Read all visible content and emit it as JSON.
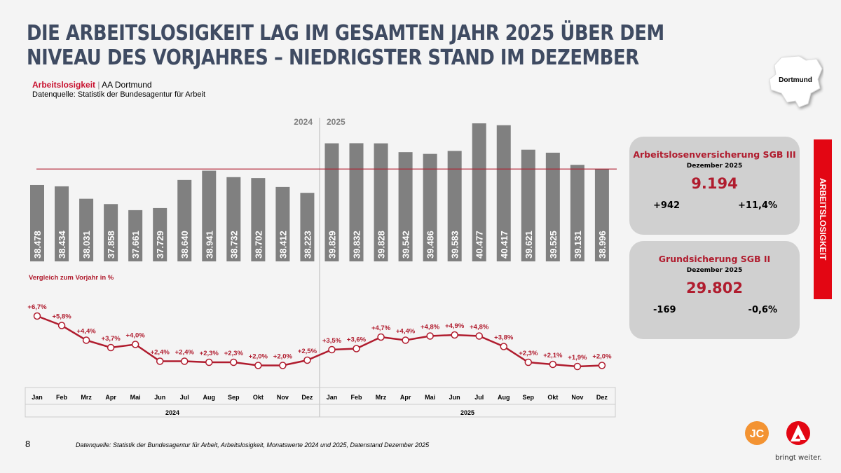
{
  "title": "DIE ARBEITSLOSIGKEIT LAG IM GESAMTEN JAHR 2025 ÜBER DEM NIVEAU DES VORJAHRES – NIEDRIGSTER STAND IM DEZEMBER",
  "subtitle_label": "Arbeitslosigkeit",
  "subtitle_region": "AA Dortmund",
  "source_line": "Datenquelle: Statistik der Bundesagentur für Arbeit",
  "map_label": "Dortmund",
  "side_band": "ARBEITSLOSIGKEIT",
  "cards": [
    {
      "heading": "Arbeitslosenversicherung SGB III",
      "date": "Dezember 2025",
      "value": "9.194",
      "abs": "+942",
      "pct": "+11,4%"
    },
    {
      "heading": "Grundsicherung SGB II",
      "date": "Dezember 2025",
      "value": "29.802",
      "abs": "-169",
      "pct": "-0,6%"
    }
  ],
  "page_number": "8",
  "footnote": "Datenquelle: Statistik der Bundesagentur für Arbeit, Arbeitslosigkeit, Monatswerte 2024 und 2025, Datenstand Dezember 2025",
  "logo_text": "JC",
  "slogan": "bringt weiter.",
  "colors": {
    "bar": "#808080",
    "accent": "#b01c2e",
    "title": "#3f4b62",
    "band": "#e30613"
  },
  "chart_data": [
    {
      "type": "bar",
      "years": [
        "2024",
        "2025"
      ],
      "categories": [
        "Jan",
        "Feb",
        "Mrz",
        "Apr",
        "Mai",
        "Jun",
        "Jul",
        "Aug",
        "Sep",
        "Okt",
        "Nov",
        "Dez",
        "Jan",
        "Feb",
        "Mrz",
        "Apr",
        "Mai",
        "Jun",
        "Jul",
        "Aug",
        "Sep",
        "Okt",
        "Nov",
        "Dez"
      ],
      "values": [
        38478,
        38434,
        38031,
        37858,
        37661,
        37729,
        38640,
        38941,
        38732,
        38702,
        38412,
        38223,
        39829,
        39832,
        39828,
        39542,
        39486,
        39583,
        40477,
        40417,
        39621,
        39525,
        39131,
        38996
      ],
      "labels": [
        "38.478",
        "38.434",
        "38.031",
        "37.858",
        "37.661",
        "37.729",
        "38.640",
        "38.941",
        "38.732",
        "38.702",
        "38.412",
        "38.223",
        "39.829",
        "39.832",
        "39.828",
        "39.542",
        "39.486",
        "39.583",
        "40.477",
        "40.417",
        "39.621",
        "39.525",
        "39.131",
        "38.996"
      ],
      "reference_line": 38996,
      "ylim": [
        36000,
        41000
      ]
    },
    {
      "type": "line",
      "title": "Vergleich zum Vorjahr in %",
      "values": [
        6.7,
        5.8,
        4.4,
        3.7,
        4.0,
        2.4,
        2.4,
        2.3,
        2.3,
        2.0,
        2.0,
        2.5,
        3.5,
        3.6,
        4.7,
        4.4,
        4.8,
        4.9,
        4.8,
        3.8,
        2.3,
        2.1,
        1.9,
        2.0
      ],
      "labels": [
        "+6,7%",
        "+5,8%",
        "+4,4%",
        "+3,7%",
        "+4,0%",
        "+2,4%",
        "+2,4%",
        "+2,3%",
        "+2,3%",
        "+2,0%",
        "+2,0%",
        "+2,5%",
        "+3,5%",
        "+3,6%",
        "+4,7%",
        "+4,4%",
        "+4,8%",
        "+4,9%",
        "+4,8%",
        "+3,8%",
        "+2,3%",
        "+2,1%",
        "+1,9%",
        "+2,0%"
      ]
    }
  ]
}
